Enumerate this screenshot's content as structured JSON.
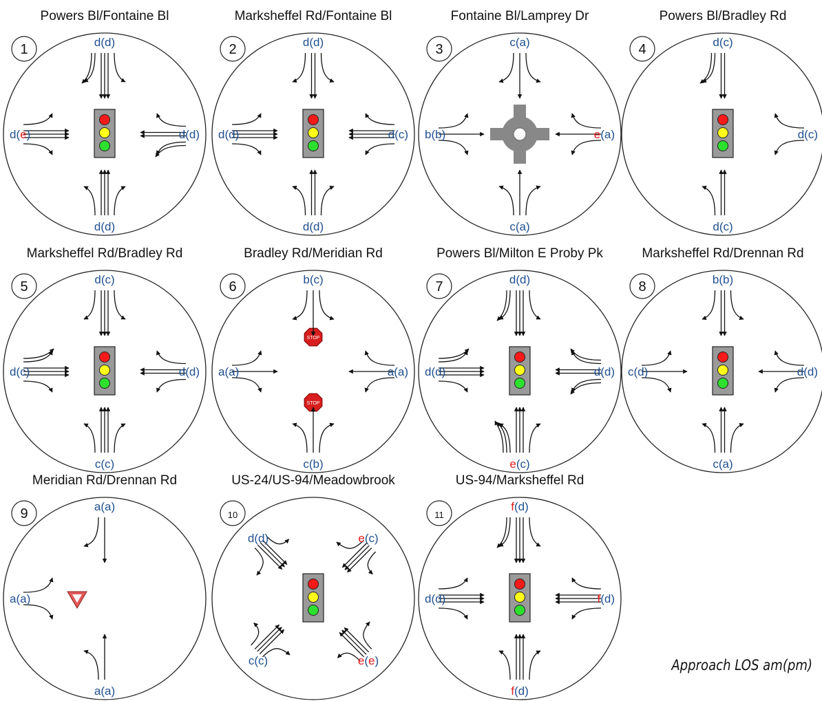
{
  "legend_label": "Approach LOS am(pm)",
  "colors": {
    "ok": "#1f4f8f",
    "fail": "#e31b1b",
    "line": "#111111"
  },
  "intersections": [
    {
      "number": "1",
      "title": "Powers Bl/Fontaine Bl",
      "control": "signal",
      "approaches": {
        "north": {
          "parts": [
            [
              "d",
              "ok"
            ],
            [
              "(",
              "ok"
            ],
            [
              "d",
              "ok"
            ],
            [
              ")",
              "ok"
            ]
          ],
          "lefts": 1,
          "throughs": 3,
          "rights": 2
        },
        "south": {
          "parts": [
            [
              "d",
              "ok"
            ],
            [
              "(",
              "ok"
            ],
            [
              "d",
              "ok"
            ],
            [
              ")",
              "ok"
            ]
          ],
          "lefts": 1,
          "throughs": 3,
          "rights": 1
        },
        "west": {
          "parts": [
            [
              "d",
              "ok"
            ],
            [
              "(",
              "ok"
            ],
            [
              "e",
              "fail"
            ],
            [
              ")",
              "ok"
            ]
          ],
          "lefts": 1,
          "throughs": 3,
          "rights": 1
        },
        "east": {
          "parts": [
            [
              "d",
              "ok"
            ],
            [
              "(",
              "ok"
            ],
            [
              "d",
              "ok"
            ],
            [
              ")",
              "ok"
            ]
          ],
          "lefts": 2,
          "throughs": 2,
          "rights": 1
        }
      }
    },
    {
      "number": "2",
      "title": "Marksheffel Rd/Fontaine Bl",
      "control": "signal",
      "approaches": {
        "north": {
          "parts": [
            [
              "d",
              "ok"
            ],
            [
              "(",
              "ok"
            ],
            [
              "d",
              "ok"
            ],
            [
              ")",
              "ok"
            ]
          ],
          "lefts": 1,
          "throughs": 2,
          "rights": 1
        },
        "south": {
          "parts": [
            [
              "d",
              "ok"
            ],
            [
              "(",
              "ok"
            ],
            [
              "d",
              "ok"
            ],
            [
              ")",
              "ok"
            ]
          ],
          "lefts": 1,
          "throughs": 2,
          "rights": 1
        },
        "west": {
          "parts": [
            [
              "d",
              "ok"
            ],
            [
              "(",
              "ok"
            ],
            [
              "d",
              "ok"
            ],
            [
              ")",
              "ok"
            ]
          ],
          "lefts": 1,
          "throughs": 3,
          "rights": 1
        },
        "east": {
          "parts": [
            [
              "d",
              "ok"
            ],
            [
              "(",
              "ok"
            ],
            [
              "c",
              "ok"
            ],
            [
              ")",
              "ok"
            ]
          ],
          "lefts": 1,
          "throughs": 3,
          "rights": 1
        }
      }
    },
    {
      "number": "3",
      "title": "Fontaine Bl/Lamprey Dr",
      "control": "roundabout",
      "approaches": {
        "north": {
          "parts": [
            [
              "c",
              "ok"
            ],
            [
              "(",
              "ok"
            ],
            [
              "a",
              "ok"
            ],
            [
              ")",
              "ok"
            ]
          ],
          "lefts": 1,
          "throughs": 1,
          "rights": 1
        },
        "south": {
          "parts": [
            [
              "c",
              "ok"
            ],
            [
              "(",
              "ok"
            ],
            [
              "a",
              "ok"
            ],
            [
              ")",
              "ok"
            ]
          ],
          "lefts": 1,
          "throughs": 1,
          "rights": 1
        },
        "west": {
          "parts": [
            [
              "b",
              "ok"
            ],
            [
              "(",
              "ok"
            ],
            [
              "b",
              "ok"
            ],
            [
              ")",
              "ok"
            ]
          ],
          "lefts": 1,
          "throughs": 1,
          "rights": 1
        },
        "east": {
          "parts": [
            [
              "e",
              "fail"
            ],
            [
              "(",
              "ok"
            ],
            [
              "a",
              "ok"
            ],
            [
              ")",
              "ok"
            ]
          ],
          "lefts": 1,
          "throughs": 1,
          "rights": 1
        }
      }
    },
    {
      "number": "4",
      "title": "Powers Bl/Bradley Rd",
      "control": "signal",
      "approaches": {
        "north": {
          "parts": [
            [
              "d",
              "ok"
            ],
            [
              "(",
              "ok"
            ],
            [
              "c",
              "ok"
            ],
            [
              ")",
              "ok"
            ]
          ],
          "lefts": 0,
          "throughs": 2,
          "rights": 2
        },
        "south": {
          "parts": [
            [
              "d",
              "ok"
            ],
            [
              "(",
              "ok"
            ],
            [
              "c",
              "ok"
            ],
            [
              ")",
              "ok"
            ]
          ],
          "lefts": 1,
          "throughs": 2,
          "rights": 0
        },
        "east": {
          "parts": [
            [
              "d",
              "ok"
            ],
            [
              "(",
              "ok"
            ],
            [
              "c",
              "ok"
            ],
            [
              ")",
              "ok"
            ]
          ],
          "lefts": 1,
          "throughs": 0,
          "rights": 1
        }
      }
    },
    {
      "number": "5",
      "title": "Marksheffel Rd/Bradley Rd",
      "control": "signal",
      "approaches": {
        "north": {
          "parts": [
            [
              "d",
              "ok"
            ],
            [
              "(",
              "ok"
            ],
            [
              "c",
              "ok"
            ],
            [
              ")",
              "ok"
            ]
          ],
          "lefts": 1,
          "throughs": 3,
          "rights": 1
        },
        "south": {
          "parts": [
            [
              "c",
              "ok"
            ],
            [
              "(",
              "ok"
            ],
            [
              "c",
              "ok"
            ],
            [
              ")",
              "ok"
            ]
          ],
          "lefts": 1,
          "throughs": 3,
          "rights": 1
        },
        "west": {
          "parts": [
            [
              "d",
              "ok"
            ],
            [
              "(",
              "ok"
            ],
            [
              "c",
              "ok"
            ],
            [
              ")",
              "ok"
            ]
          ],
          "lefts": 2,
          "throughs": 3,
          "rights": 1
        },
        "east": {
          "parts": [
            [
              "d",
              "ok"
            ],
            [
              "(",
              "ok"
            ],
            [
              "d",
              "ok"
            ],
            [
              ")",
              "ok"
            ]
          ],
          "lefts": 1,
          "throughs": 2,
          "rights": 1
        }
      }
    },
    {
      "number": "6",
      "title": "Bradley Rd/Meridian Rd",
      "control": "stop",
      "approaches": {
        "north": {
          "parts": [
            [
              "b",
              "ok"
            ],
            [
              "(",
              "ok"
            ],
            [
              "c",
              "ok"
            ],
            [
              ")",
              "ok"
            ]
          ],
          "lefts": 1,
          "throughs": 1,
          "rights": 1
        },
        "south": {
          "parts": [
            [
              "c",
              "ok"
            ],
            [
              "(",
              "ok"
            ],
            [
              "b",
              "ok"
            ],
            [
              ")",
              "ok"
            ]
          ],
          "lefts": 1,
          "throughs": 1,
          "rights": 1
        },
        "west": {
          "parts": [
            [
              "a",
              "ok"
            ],
            [
              "(",
              "ok"
            ],
            [
              "a",
              "ok"
            ],
            [
              ")",
              "ok"
            ]
          ],
          "lefts": 1,
          "throughs": 1,
          "rights": 1
        },
        "east": {
          "parts": [
            [
              "a",
              "ok"
            ],
            [
              "(",
              "ok"
            ],
            [
              "a",
              "ok"
            ],
            [
              ")",
              "ok"
            ]
          ],
          "lefts": 1,
          "throughs": 1,
          "rights": 1
        }
      },
      "stop_sign_text": "STOP"
    },
    {
      "number": "7",
      "title": "Powers Bl/Milton E Proby Pk",
      "control": "signal",
      "approaches": {
        "north": {
          "parts": [
            [
              "d",
              "ok"
            ],
            [
              "(",
              "ok"
            ],
            [
              "d",
              "ok"
            ],
            [
              ")",
              "ok"
            ]
          ],
          "lefts": 1,
          "throughs": 3,
          "rights": 2
        },
        "south": {
          "parts": [
            [
              "e",
              "fail"
            ],
            [
              "(",
              "ok"
            ],
            [
              "c",
              "ok"
            ],
            [
              ")",
              "ok"
            ]
          ],
          "lefts": 3,
          "throughs": 3,
          "rights": 1
        },
        "west": {
          "parts": [
            [
              "d",
              "ok"
            ],
            [
              "(",
              "ok"
            ],
            [
              "d",
              "ok"
            ],
            [
              ")",
              "ok"
            ]
          ],
          "lefts": 2,
          "throughs": 3,
          "rights": 1
        },
        "east": {
          "parts": [
            [
              "d",
              "ok"
            ],
            [
              "(",
              "ok"
            ],
            [
              "d",
              "ok"
            ],
            [
              ")",
              "ok"
            ]
          ],
          "lefts": 2,
          "throughs": 2,
          "rights": 2
        }
      }
    },
    {
      "number": "8",
      "title": "Marksheffel Rd/Drennan Rd",
      "control": "signal",
      "approaches": {
        "north": {
          "parts": [
            [
              "b",
              "ok"
            ],
            [
              "(",
              "ok"
            ],
            [
              "b",
              "ok"
            ],
            [
              ")",
              "ok"
            ]
          ],
          "lefts": 1,
          "throughs": 2,
          "rights": 1
        },
        "south": {
          "parts": [
            [
              "c",
              "ok"
            ],
            [
              "(",
              "ok"
            ],
            [
              "a",
              "ok"
            ],
            [
              ")",
              "ok"
            ]
          ],
          "lefts": 1,
          "throughs": 2,
          "rights": 1
        },
        "west": {
          "parts": [
            [
              "c",
              "ok"
            ],
            [
              "(",
              "ok"
            ],
            [
              "d",
              "ok"
            ],
            [
              ")",
              "ok"
            ]
          ],
          "lefts": 1,
          "throughs": 1,
          "rights": 1
        },
        "east": {
          "parts": [
            [
              "d",
              "ok"
            ],
            [
              "(",
              "ok"
            ],
            [
              "d",
              "ok"
            ],
            [
              ")",
              "ok"
            ]
          ],
          "lefts": 1,
          "throughs": 1,
          "rights": 1
        }
      }
    },
    {
      "number": "9",
      "title": "Meridian Rd/Drennan Rd",
      "control": "yield",
      "approaches": {
        "north": {
          "parts": [
            [
              "a",
              "ok"
            ],
            [
              "(",
              "ok"
            ],
            [
              "a",
              "ok"
            ],
            [
              ")",
              "ok"
            ]
          ],
          "lefts": 0,
          "throughs": 1,
          "rights": 1
        },
        "south": {
          "parts": [
            [
              "a",
              "ok"
            ],
            [
              "(",
              "ok"
            ],
            [
              "a",
              "ok"
            ],
            [
              ")",
              "ok"
            ]
          ],
          "lefts": 1,
          "throughs": 1,
          "rights": 0
        },
        "west": {
          "parts": [
            [
              "a",
              "ok"
            ],
            [
              "(",
              "ok"
            ],
            [
              "a",
              "ok"
            ],
            [
              ")",
              "ok"
            ]
          ],
          "lefts": 1,
          "throughs": 0,
          "rights": 1
        }
      }
    },
    {
      "number": "10",
      "title": "US-24/US-94/Meadowbrook",
      "control": "signal",
      "approaches": {
        "northwest": {
          "parts": [
            [
              "d",
              "ok"
            ],
            [
              "(",
              "ok"
            ],
            [
              "d",
              "ok"
            ],
            [
              ")",
              "ok"
            ]
          ]
        },
        "northeast": {
          "parts": [
            [
              "e",
              "fail"
            ],
            [
              "(",
              "ok"
            ],
            [
              "c",
              "ok"
            ],
            [
              ")",
              "ok"
            ]
          ]
        },
        "southwest": {
          "parts": [
            [
              "c",
              "ok"
            ],
            [
              "(",
              "ok"
            ],
            [
              "c",
              "ok"
            ],
            [
              ")",
              "ok"
            ]
          ]
        },
        "southeast": {
          "parts": [
            [
              "e",
              "fail"
            ],
            [
              "(",
              "ok"
            ],
            [
              "e",
              "fail"
            ],
            [
              ")",
              "ok"
            ]
          ]
        }
      }
    },
    {
      "number": "11",
      "title": "US-94/Marksheffel Rd",
      "control": "signal",
      "approaches": {
        "north": {
          "parts": [
            [
              "f",
              "fail"
            ],
            [
              "(",
              "ok"
            ],
            [
              "d",
              "ok"
            ],
            [
              ")",
              "ok"
            ]
          ],
          "lefts": 1,
          "throughs": 3,
          "rights": 2
        },
        "south": {
          "parts": [
            [
              "f",
              "fail"
            ],
            [
              "(",
              "ok"
            ],
            [
              "d",
              "ok"
            ],
            [
              ")",
              "ok"
            ]
          ],
          "lefts": 1,
          "throughs": 3,
          "rights": 1
        },
        "west": {
          "parts": [
            [
              "d",
              "ok"
            ],
            [
              "(",
              "ok"
            ],
            [
              "d",
              "ok"
            ],
            [
              ")",
              "ok"
            ]
          ],
          "lefts": 1,
          "throughs": 3,
          "rights": 1
        },
        "east": {
          "parts": [
            [
              "f",
              "fail"
            ],
            [
              "(",
              "ok"
            ],
            [
              "d",
              "ok"
            ],
            [
              ")",
              "ok"
            ]
          ],
          "lefts": 1,
          "throughs": 3,
          "rights": 1
        }
      }
    }
  ]
}
